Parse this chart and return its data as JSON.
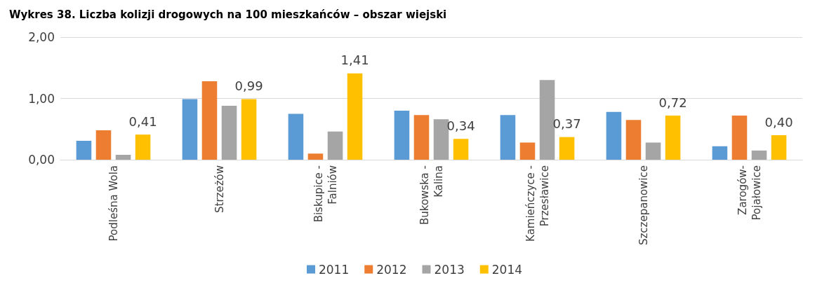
{
  "chart_data": {
    "type": "bar",
    "title": "Wykres 38. Liczba kolizji drogowych na 100 mieszkańców – obszar wiejski",
    "categories": [
      "Podleśna Wola",
      "Strzeżów",
      "Biskupice -\nFalniów",
      "Bukowska -\nKalina",
      "Kamieńczyce -\nPrzesławice",
      "Szczepanowice",
      "Zarogów-\nPojałowice"
    ],
    "series": [
      {
        "name": "2011",
        "color": "#5b9bd5",
        "values": [
          0.31,
          0.99,
          0.75,
          0.8,
          0.73,
          0.78,
          0.22
        ]
      },
      {
        "name": "2012",
        "color": "#ed7d31",
        "values": [
          0.48,
          1.28,
          0.1,
          0.73,
          0.28,
          0.65,
          0.72
        ]
      },
      {
        "name": "2013",
        "color": "#a5a5a5",
        "values": [
          0.08,
          0.88,
          0.46,
          0.66,
          1.3,
          0.28,
          0.15
        ]
      },
      {
        "name": "2014",
        "color": "#ffc000",
        "values": [
          0.41,
          0.99,
          1.41,
          0.34,
          0.37,
          0.72,
          0.4
        ],
        "value_labels": [
          "0,41",
          "0,99",
          "1,41",
          "0,34",
          "0,37",
          "0,72",
          "0,40"
        ]
      }
    ],
    "ylim": [
      0,
      2
    ],
    "yticks": [
      {
        "value": 0,
        "label": "0,00"
      },
      {
        "value": 1,
        "label": "1,00"
      },
      {
        "value": 2,
        "label": "2,00"
      }
    ],
    "grid": "y",
    "legend": "bottom"
  }
}
